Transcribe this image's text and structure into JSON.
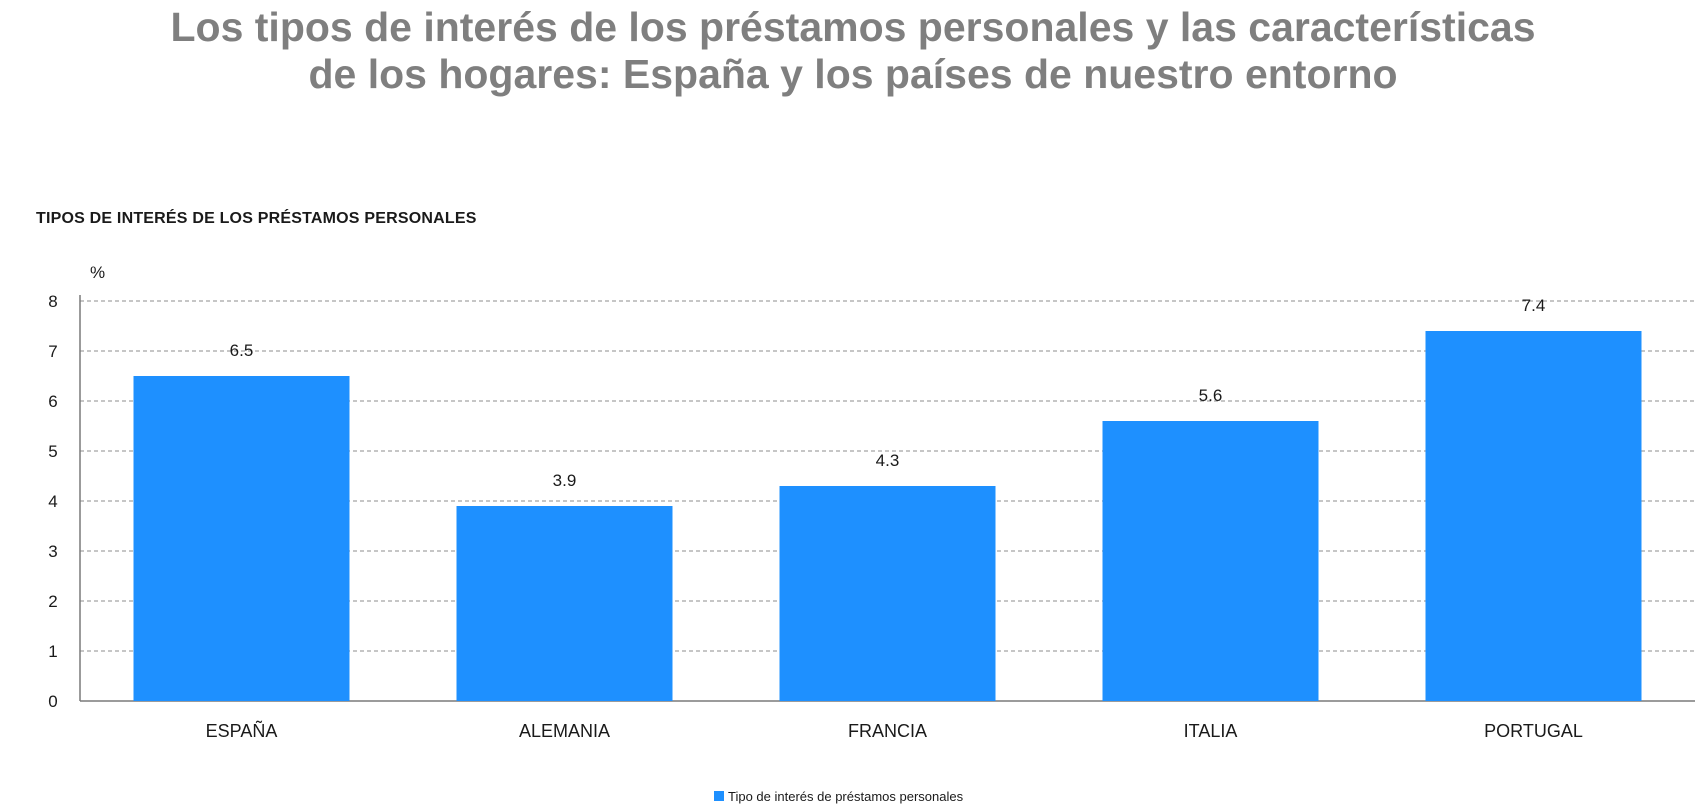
{
  "title": {
    "line1": "Los tipos de interés de los préstamos personales y las características",
    "line2": "de los hogares: España y los países de nuestro entorno"
  },
  "chart_data": {
    "type": "bar",
    "title": "TIPOS DE INTERÉS DE LOS PRÉSTAMOS PERSONALES",
    "ylabel": "%",
    "xlabel": "",
    "categories": [
      "ESPAÑA",
      "ALEMANIA",
      "FRANCIA",
      "ITALIA",
      "PORTUGAL"
    ],
    "series": [
      {
        "name": "Tipo de interés de préstamos personales",
        "values": [
          6.5,
          3.9,
          4.3,
          5.6,
          7.4
        ],
        "color": "#1e90ff"
      }
    ],
    "data_labels": [
      "6.5",
      "3.9",
      "4.3",
      "5.6",
      "7.4"
    ],
    "ylim": [
      0,
      8
    ],
    "yticks": [
      "0",
      "1",
      "2",
      "3",
      "4",
      "5",
      "6",
      "7",
      "8"
    ],
    "grid": "horizontal dashed",
    "legend_position": "bottom-center"
  }
}
